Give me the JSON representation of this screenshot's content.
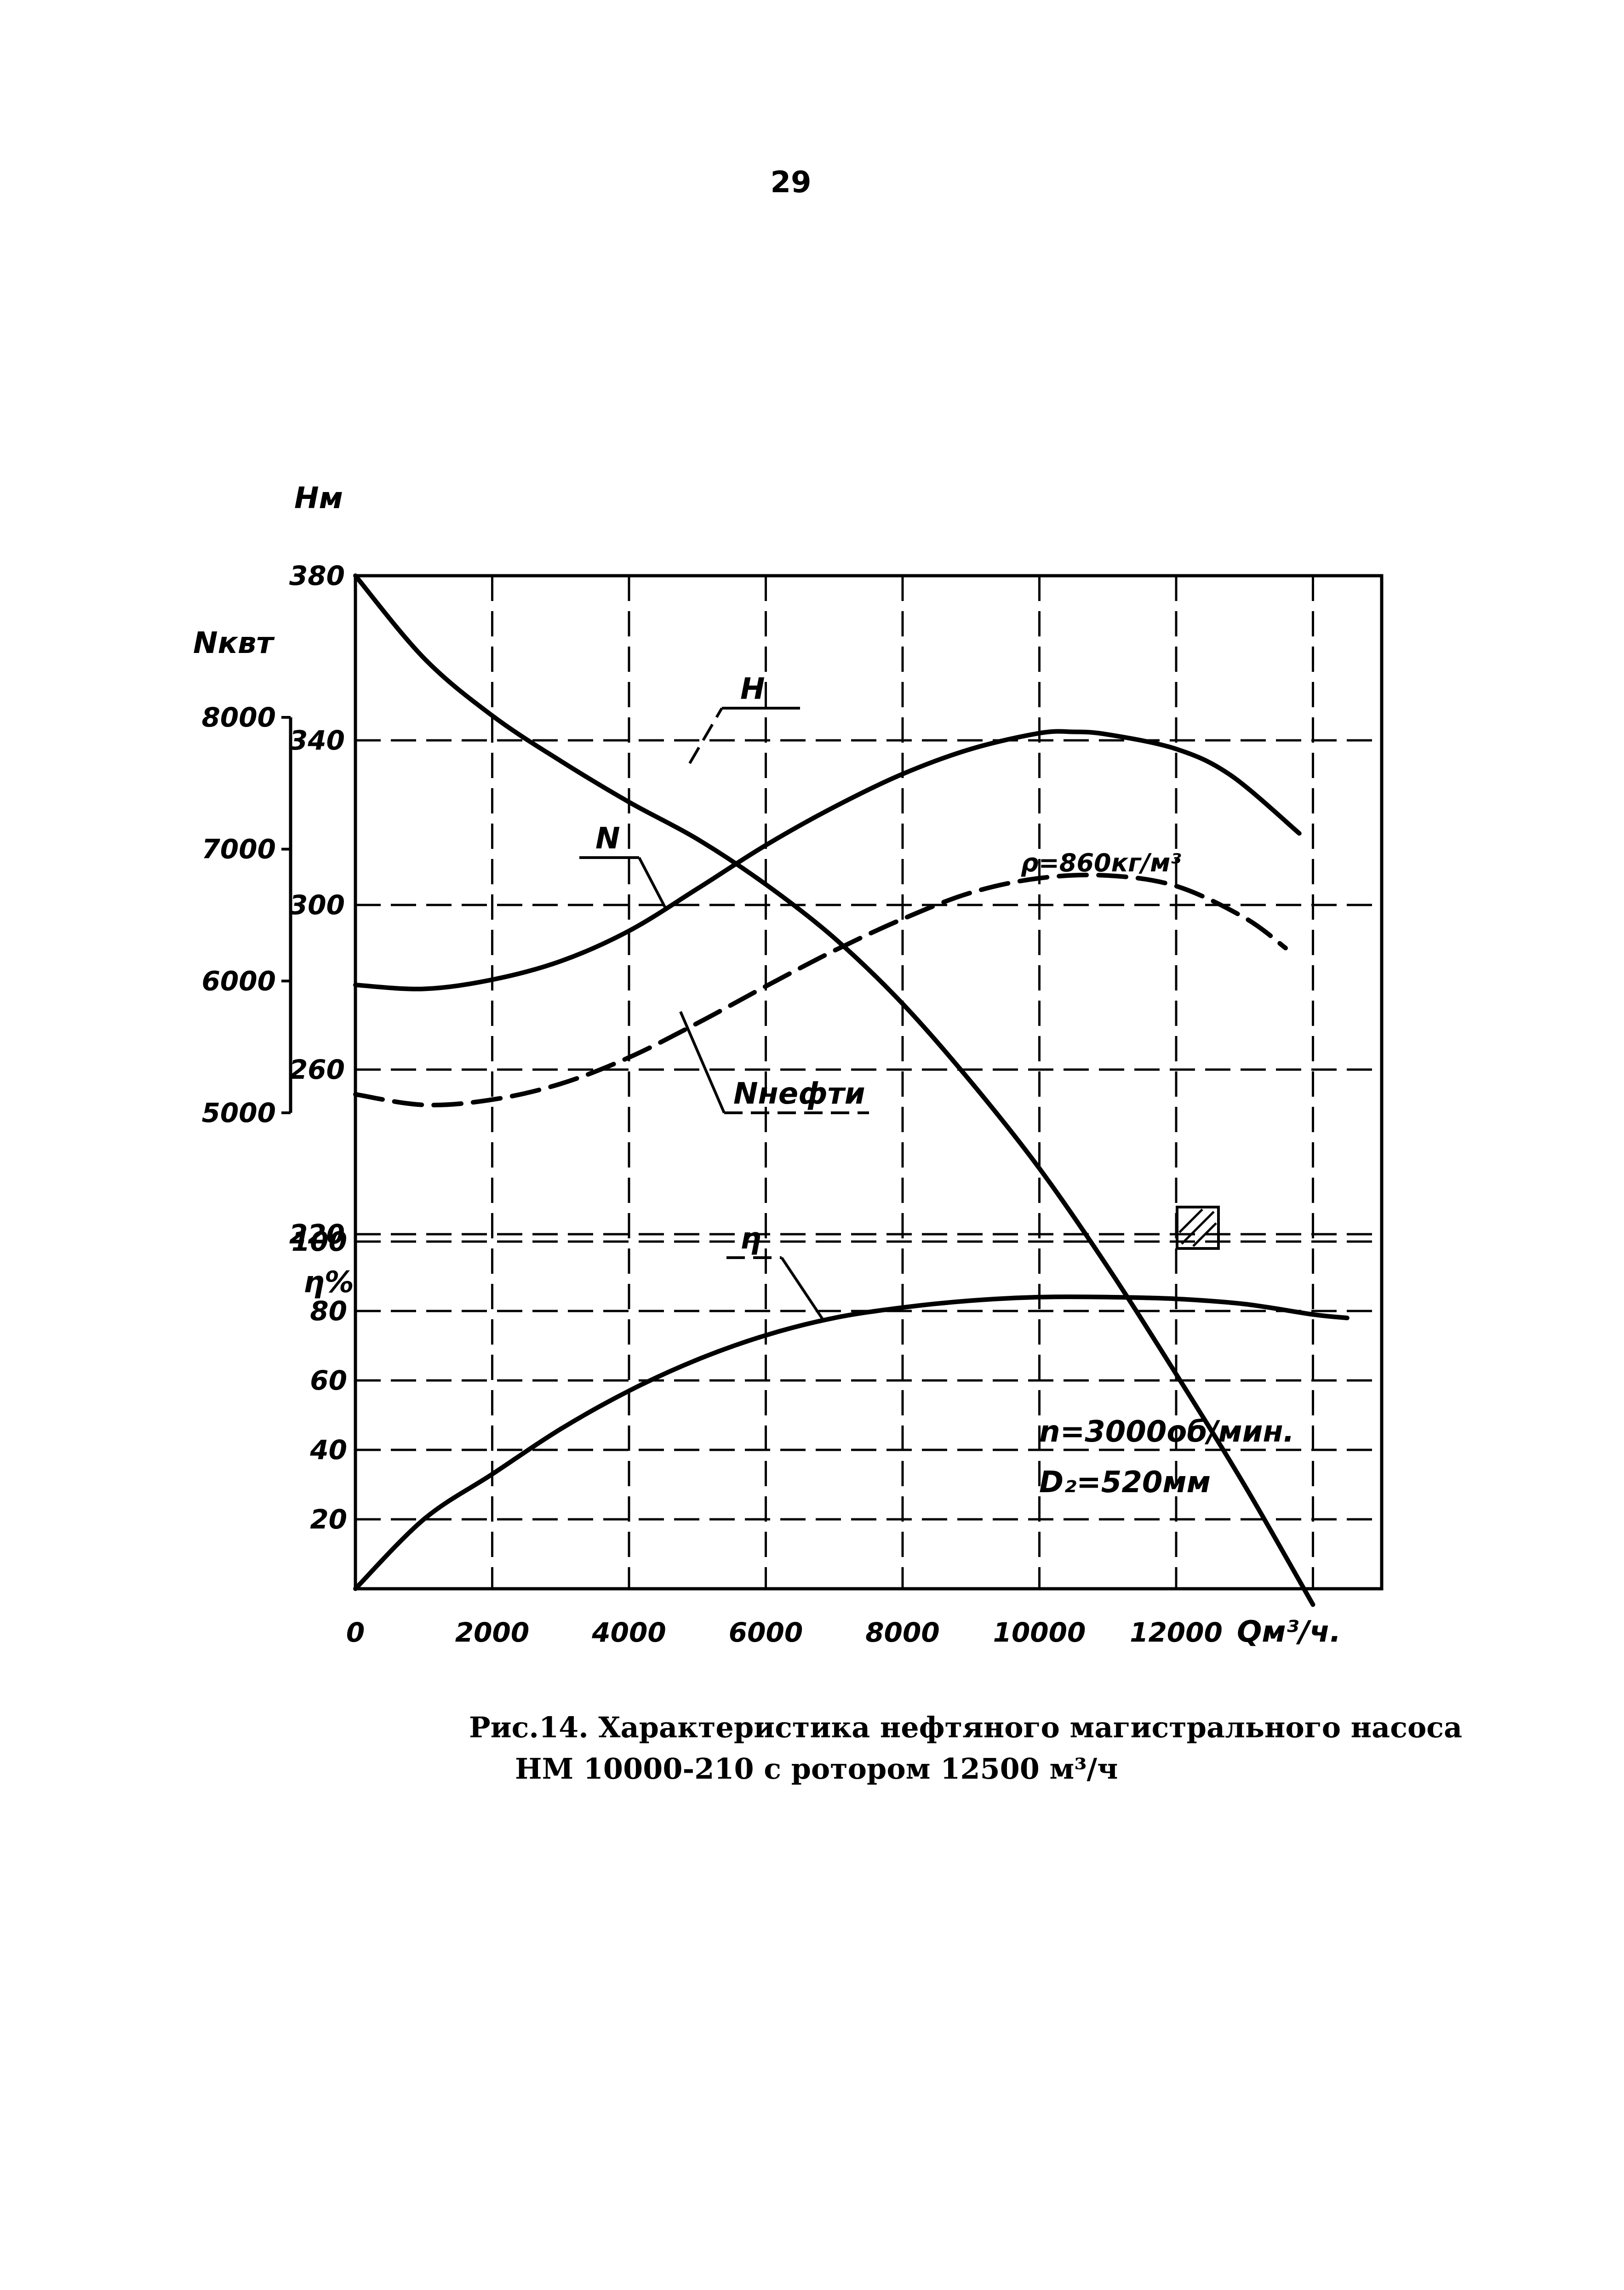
{
  "page_number": "29",
  "caption": {
    "line1": "Рис.14. Характеристика нефтяного магистрального насоса",
    "line2": "НМ 10000-210 с ротором 12500 м³/ч"
  },
  "chart_data": {
    "type": "line",
    "x_axis": {
      "label": "Qм³/ч.",
      "range": [
        0,
        15000
      ],
      "tick_values": [
        0,
        2000,
        4000,
        6000,
        8000,
        10000,
        12000
      ],
      "tick_labels": [
        "0",
        "2000",
        "4000",
        "6000",
        "8000",
        "10000",
        "12000"
      ]
    },
    "y_axes": {
      "H": {
        "label": "Hм",
        "range": [
          220,
          380
        ],
        "tick_values": [
          380,
          340,
          300,
          260,
          220
        ],
        "tick_labels": [
          "380",
          "340",
          "300",
          "260",
          "220"
        ]
      },
      "N": {
        "label": "Nквт",
        "range": [
          5000,
          8000
        ],
        "tick_values": [
          8000,
          7000,
          6000,
          5000
        ],
        "tick_labels": [
          "8000",
          "7000",
          "6000",
          "5000"
        ]
      },
      "eta": {
        "label": "η%",
        "range": [
          0,
          100
        ],
        "tick_values": [
          100,
          80,
          60,
          40,
          20
        ],
        "tick_labels": [
          "100",
          "80",
          "60",
          "40",
          "20"
        ]
      }
    },
    "series": [
      {
        "name": "H",
        "axis": "H",
        "style": "solid",
        "x": [
          0,
          1000,
          2000,
          3000,
          4000,
          5000,
          6000,
          7000,
          8000,
          9000,
          10000,
          11000,
          12000,
          13000,
          14000
        ],
        "y": [
          380,
          360,
          346,
          335,
          325,
          316,
          305,
          292,
          276,
          257,
          236,
          212,
          186,
          159,
          130
        ]
      },
      {
        "name": "N",
        "axis": "N",
        "style": "solid",
        "x": [
          0,
          1000,
          2000,
          3000,
          4000,
          5000,
          6000,
          7000,
          8000,
          9000,
          10000,
          10500,
          11000,
          12000,
          12800,
          13800
        ],
        "y": [
          5970,
          5940,
          6010,
          6150,
          6380,
          6700,
          7030,
          7320,
          7570,
          7760,
          7880,
          7890,
          7870,
          7760,
          7560,
          7120
        ]
      },
      {
        "name": "Nнефти",
        "note": "ρ=860кг/м³",
        "axis": "N",
        "style": "dashed",
        "x": [
          0,
          1000,
          2000,
          3000,
          4000,
          5000,
          6000,
          7000,
          8000,
          9000,
          10000,
          11000,
          12000,
          13000,
          13600
        ],
        "y": [
          5140,
          5060,
          5100,
          5220,
          5420,
          5680,
          5960,
          6230,
          6470,
          6670,
          6780,
          6800,
          6720,
          6480,
          6250
        ]
      },
      {
        "name": "η",
        "axis": "eta",
        "style": "solid",
        "x": [
          0,
          1000,
          2000,
          3000,
          4000,
          5000,
          6000,
          7000,
          8000,
          9000,
          10000,
          11000,
          12000,
          13000,
          14000,
          14500
        ],
        "y": [
          0,
          20,
          33,
          46,
          57,
          66,
          73,
          78,
          81,
          83,
          84,
          84,
          83.5,
          82,
          79,
          78
        ]
      }
    ],
    "annotations": [
      "ρ=860кг/м³",
      "n=3000об/мин.",
      "D₂=520мм"
    ]
  }
}
